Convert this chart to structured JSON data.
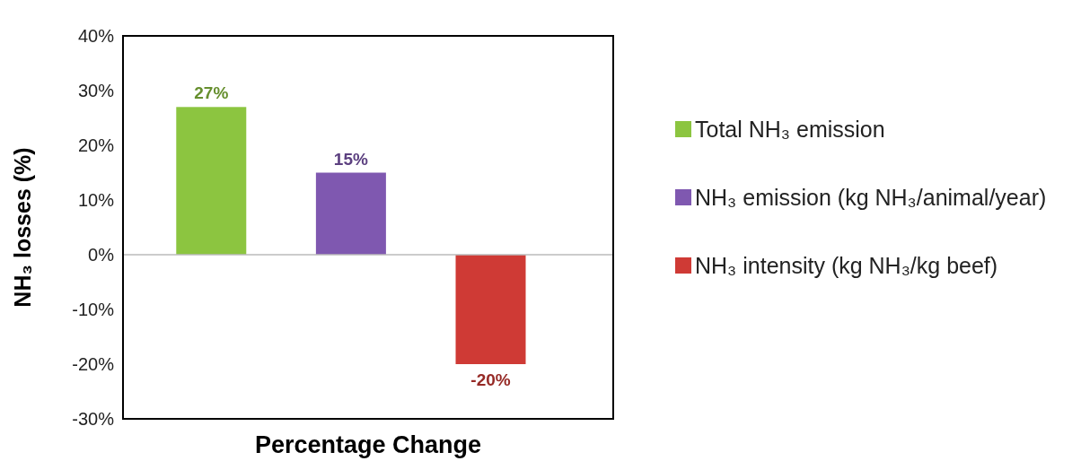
{
  "chart_data": {
    "type": "bar",
    "xlabel": "Percentage Change",
    "ylabel": "NH₃  losses (%)",
    "categories": [
      null
    ],
    "series": [
      {
        "name": "Total NH₃ emission",
        "color": "#8cc540",
        "values": [
          27
        ],
        "value_labels": [
          "27%"
        ]
      },
      {
        "name": "NH₃ emission (kg NH₃/animal/year)",
        "color": "#7f58b0",
        "values": [
          15
        ],
        "value_labels": [
          "15%"
        ]
      },
      {
        "name": "NH₃ intensity (kg NH₃/kg beef)",
        "color": "#cf3a35",
        "values": [
          -20
        ],
        "value_labels": [
          "-20%"
        ]
      }
    ],
    "ylim": [
      -30,
      40
    ],
    "yticks": [
      {
        "value": -30,
        "label": "-30%"
      },
      {
        "value": -20,
        "label": "-20%"
      },
      {
        "value": -10,
        "label": "-10%"
      },
      {
        "value": 0,
        "label": "0%"
      },
      {
        "value": 10,
        "label": "10%"
      },
      {
        "value": 20,
        "label": "20%"
      },
      {
        "value": 30,
        "label": "30%"
      },
      {
        "value": 40,
        "label": "40%"
      }
    ],
    "ref_lines": [
      {
        "axis": "y",
        "value": 0,
        "color": "#bbbbbb"
      }
    ],
    "legend": "right"
  }
}
